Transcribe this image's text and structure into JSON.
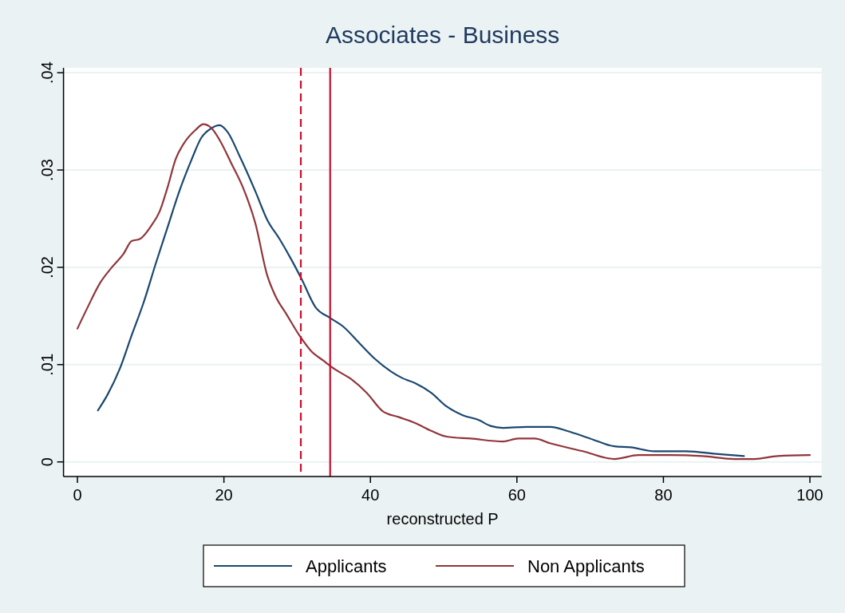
{
  "chart_data": {
    "type": "line",
    "title": "Associates - Business",
    "xlabel": "reconstructed P",
    "xlim": [
      -1.9,
      101.6
    ],
    "ylim": [
      -0.0015,
      0.0405
    ],
    "xticks": [
      0,
      20,
      40,
      60,
      80,
      100
    ],
    "yticks": [
      {
        "value": 0,
        "label": "0"
      },
      {
        "value": 0.01,
        "label": ".01"
      },
      {
        "value": 0.02,
        "label": ".02"
      },
      {
        "value": 0.03,
        "label": ".03"
      },
      {
        "value": 0.04,
        "label": ".04"
      }
    ],
    "grid": "y",
    "legend": "bottom",
    "ref_lines": [
      {
        "axis": "x",
        "value": 30.5,
        "color": "#c8102e",
        "line_style": "dashed"
      },
      {
        "axis": "x",
        "value": 34.5,
        "color": "#c8102e",
        "line_style": "solid"
      }
    ],
    "series": [
      {
        "name": "Applicants",
        "color": "#1a476f",
        "x": [
          2.8,
          4.1,
          5.8,
          7.4,
          9.0,
          10.7,
          12.3,
          13.9,
          15.6,
          16.9,
          18.3,
          19.4,
          20.5,
          22.1,
          24.3,
          25.9,
          27.6,
          29.2,
          30.6,
          32.5,
          34.5,
          36.3,
          38.5,
          40.6,
          42.8,
          44.4,
          46.1,
          48.3,
          50.4,
          52.6,
          54.8,
          56.4,
          58.1,
          61.3,
          64.6,
          66.8,
          70.0,
          73.3,
          75.5,
          78.8,
          83.1,
          87.5,
          91.0
        ],
        "values": [
          0.0053,
          0.0069,
          0.0096,
          0.013,
          0.0163,
          0.0204,
          0.0241,
          0.0278,
          0.0311,
          0.0333,
          0.0343,
          0.0346,
          0.0339,
          0.0315,
          0.0278,
          0.0249,
          0.0229,
          0.0208,
          0.0188,
          0.0159,
          0.0148,
          0.0139,
          0.0122,
          0.0106,
          0.0093,
          0.0086,
          0.0081,
          0.0071,
          0.0057,
          0.0048,
          0.0043,
          0.0037,
          0.0035,
          0.0036,
          0.0036,
          0.0032,
          0.0024,
          0.0016,
          0.0015,
          0.0011,
          0.0011,
          0.0008,
          0.0006
        ]
      },
      {
        "name": "Non Applicants",
        "color": "#90353b",
        "x": [
          0,
          1.4,
          3.1,
          4.7,
          6.3,
          7.4,
          8.5,
          10.1,
          11.2,
          12.3,
          13.4,
          14.5,
          16.1,
          17.2,
          18.3,
          19.4,
          21.0,
          22.6,
          24.3,
          25.9,
          27.0,
          28.6,
          30.3,
          31.9,
          33.6,
          35.2,
          37.4,
          39.5,
          41.7,
          43.9,
          46.1,
          48.3,
          50.4,
          53.7,
          58.1,
          60.2,
          62.4,
          64.6,
          69.0,
          73.3,
          76.6,
          80.9,
          85.3,
          89.7,
          92.4,
          95.6,
          100
        ],
        "values": [
          0.0137,
          0.0159,
          0.0184,
          0.02,
          0.0214,
          0.0227,
          0.0229,
          0.0243,
          0.0257,
          0.0282,
          0.0311,
          0.0327,
          0.0341,
          0.0347,
          0.0343,
          0.0331,
          0.0307,
          0.0282,
          0.0245,
          0.0192,
          0.0171,
          0.0151,
          0.013,
          0.0114,
          0.0104,
          0.0095,
          0.0085,
          0.0071,
          0.0052,
          0.0046,
          0.004,
          0.0032,
          0.0026,
          0.0024,
          0.0021,
          0.0024,
          0.0024,
          0.0019,
          0.0011,
          0.0003,
          0.0007,
          0.0007,
          0.0006,
          0.0003,
          0.0003,
          0.0006,
          0.0007
        ]
      }
    ]
  }
}
